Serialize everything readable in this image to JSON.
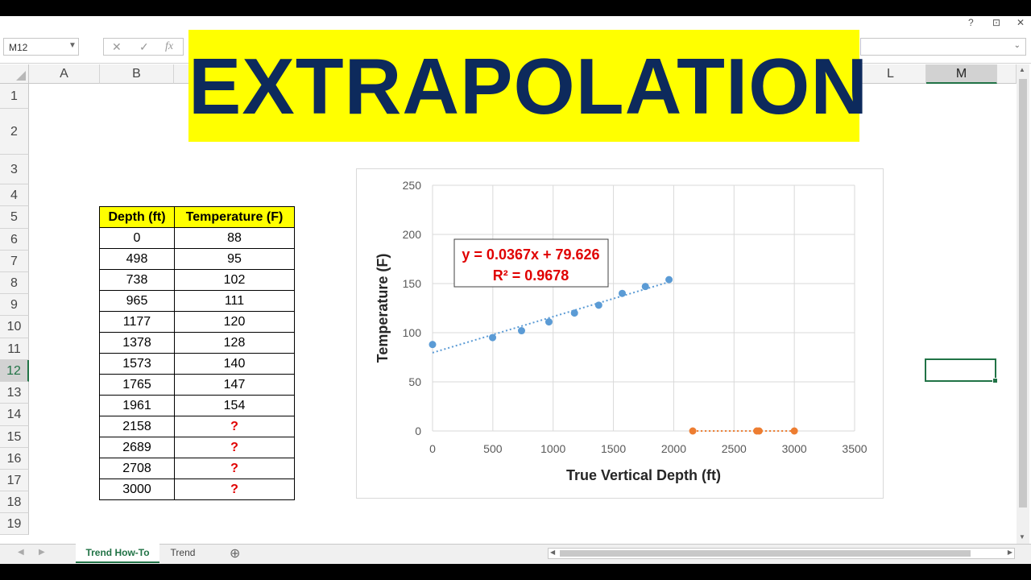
{
  "window": {
    "controls": [
      "?",
      "⊡",
      "✕"
    ]
  },
  "formula_bar": {
    "name_box": "M12",
    "cancel": "✕",
    "enter": "✓",
    "fx": "fx",
    "value": ""
  },
  "columns": [
    "A",
    "B",
    "L",
    "M"
  ],
  "rows": [
    "1",
    "2",
    "3",
    "4",
    "5",
    "6",
    "7",
    "8",
    "9",
    "10",
    "11",
    "12",
    "13",
    "14",
    "15",
    "16",
    "17",
    "18",
    "19"
  ],
  "banner": {
    "title": "EXTRAPOLATION"
  },
  "table": {
    "headers": [
      "Depth (ft)",
      "Temperature (F)"
    ],
    "rows": [
      [
        "0",
        "88"
      ],
      [
        "498",
        "95"
      ],
      [
        "738",
        "102"
      ],
      [
        "965",
        "111"
      ],
      [
        "1177",
        "120"
      ],
      [
        "1378",
        "128"
      ],
      [
        "1573",
        "140"
      ],
      [
        "1765",
        "147"
      ],
      [
        "1961",
        "154"
      ],
      [
        "2158",
        "?"
      ],
      [
        "2689",
        "?"
      ],
      [
        "2708",
        "?"
      ],
      [
        "3000",
        "?"
      ]
    ]
  },
  "chart_data": {
    "type": "scatter",
    "xlabel": "True Vertical Depth (ft)",
    "ylabel": "Temperature (F)",
    "xlim": [
      0,
      3500
    ],
    "ylim": [
      0,
      250
    ],
    "xticks": [
      "0",
      "500",
      "1000",
      "1500",
      "2000",
      "2500",
      "3000",
      "3500"
    ],
    "yticks": [
      "0",
      "50",
      "100",
      "150",
      "200",
      "250"
    ],
    "grid": true,
    "series": [
      {
        "x": [
          0,
          498,
          738,
          965,
          1177,
          1378,
          1573,
          1765,
          1961
        ],
        "y": [
          88,
          95,
          102,
          111,
          120,
          128,
          140,
          147,
          154
        ],
        "color": "#5b9bd5"
      },
      {
        "x": [
          2158,
          2689,
          2708,
          3000
        ],
        "y": [
          0,
          0,
          0,
          0
        ],
        "color": "#ed7d31"
      }
    ],
    "trendline": {
      "slope": 0.0367,
      "intercept": 79.626,
      "x_range": [
        0,
        1961
      ],
      "color": "#5b9bd5"
    },
    "equation": "y = 0.0367x + 79.626",
    "r_squared": "R² = 0.9678",
    "annotation_color": "#e00000"
  },
  "sheet_tabs": [
    "Trend How-To",
    "Trend"
  ],
  "active_tab": "Trend How-To",
  "add_sheet": "⊕",
  "accent": "#217346"
}
